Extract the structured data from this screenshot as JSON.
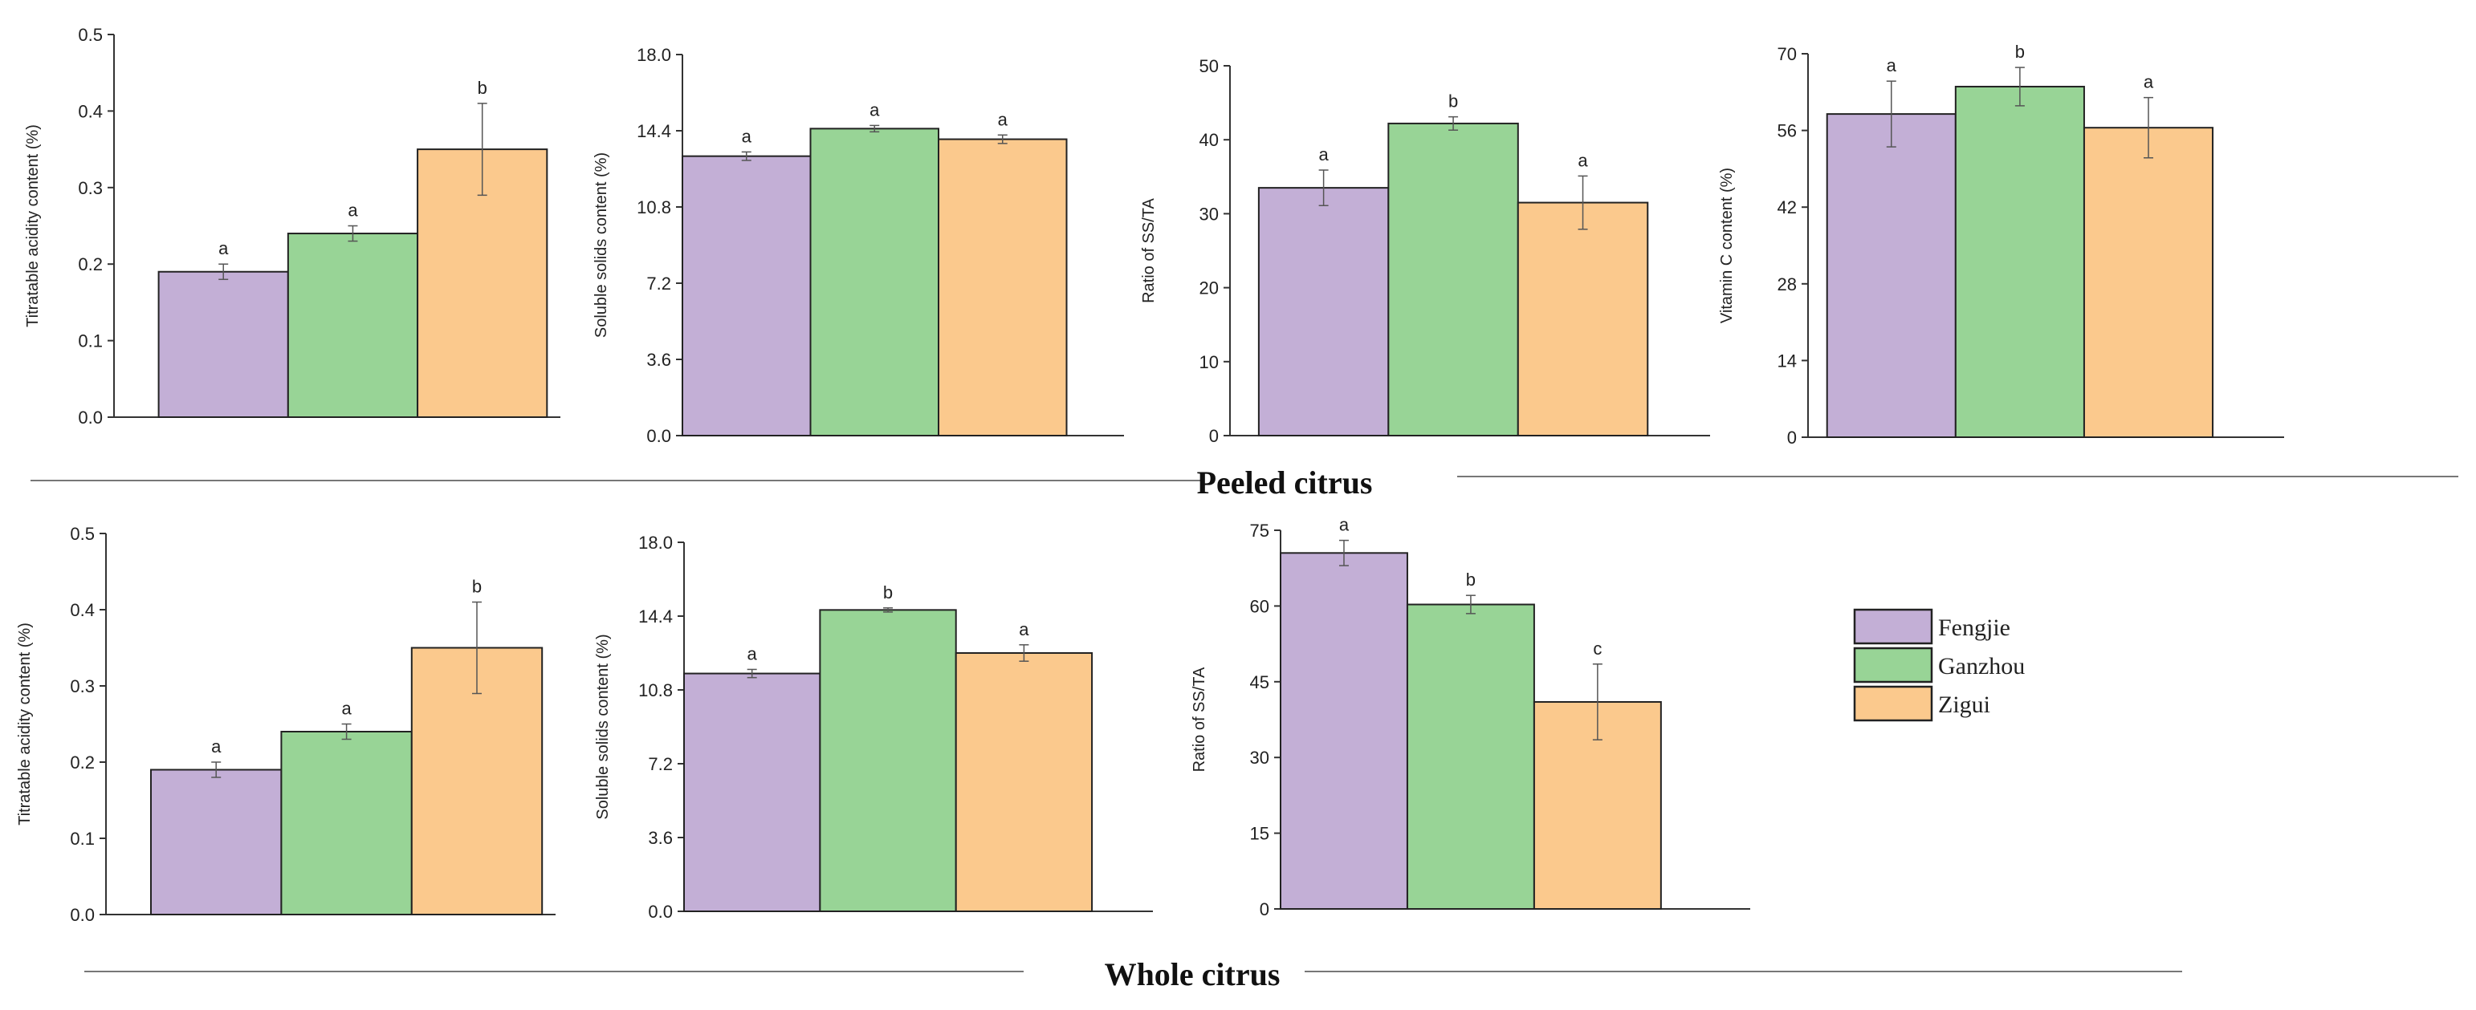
{
  "sections": {
    "peeled": {
      "label": "Peeled citrus"
    },
    "whole": {
      "label": "Whole citrus"
    }
  },
  "legend": {
    "items": [
      {
        "label": "Fengjie",
        "color": "#C3AFD6"
      },
      {
        "label": "Ganzhou",
        "color": "#98D496"
      },
      {
        "label": "Zigui",
        "color": "#FBC98D"
      }
    ]
  },
  "chart_data": [
    {
      "id": "peeled-ta",
      "type": "bar",
      "section": "Peeled citrus",
      "title": "",
      "xlabel": "",
      "ylabel": "Titratable acidity content (%)",
      "categories": [
        "Fengjie",
        "Ganzhou",
        "Zigui"
      ],
      "values": [
        0.19,
        0.24,
        0.35
      ],
      "errors": [
        0.01,
        0.01,
        0.06
      ],
      "significance": [
        "a",
        "a",
        "b"
      ],
      "ylim": [
        0,
        0.5
      ],
      "yticks": [
        "0.0",
        "0.1",
        "0.2",
        "0.3",
        "0.4",
        "0.5"
      ]
    },
    {
      "id": "peeled-ss",
      "type": "bar",
      "section": "Peeled citrus",
      "title": "",
      "xlabel": "",
      "ylabel": "Soluble solids content (%)",
      "categories": [
        "Fengjie",
        "Ganzhou",
        "Zigui"
      ],
      "values": [
        13.2,
        14.5,
        14.0
      ],
      "errors": [
        0.2,
        0.15,
        0.2
      ],
      "significance": [
        "a",
        "a",
        "a"
      ],
      "ylim": [
        0,
        18
      ],
      "yticks": [
        "0.0",
        "3.6",
        "7.2",
        "10.8",
        "14.4",
        "18.0"
      ]
    },
    {
      "id": "peeled-ratio",
      "type": "bar",
      "section": "Peeled citrus",
      "title": "",
      "xlabel": "",
      "ylabel": "Ratio of SS/TA",
      "categories": [
        "Fengjie",
        "Ganzhou",
        "Zigui"
      ],
      "values": [
        33.5,
        42.2,
        31.5
      ],
      "errors": [
        2.4,
        0.9,
        3.6
      ],
      "significance": [
        "a",
        "b",
        "a"
      ],
      "ylim": [
        0,
        50
      ],
      "yticks": [
        "0",
        "10",
        "20",
        "30",
        "40",
        "50"
      ]
    },
    {
      "id": "peeled-vc",
      "type": "bar",
      "section": "Peeled citrus",
      "title": "",
      "xlabel": "",
      "ylabel": "Vitamin C content (%)",
      "categories": [
        "Fengjie",
        "Ganzhou",
        "Zigui"
      ],
      "values": [
        59.0,
        64.0,
        56.5
      ],
      "errors": [
        6.0,
        3.5,
        5.5
      ],
      "significance": [
        "a",
        "b",
        "a"
      ],
      "ylim": [
        0,
        70
      ],
      "yticks": [
        "0",
        "14",
        "28",
        "42",
        "56",
        "70"
      ]
    },
    {
      "id": "whole-ta",
      "type": "bar",
      "section": "Whole citrus",
      "title": "",
      "xlabel": "",
      "ylabel": "Titratable acidity content (%)",
      "categories": [
        "Fengjie",
        "Ganzhou",
        "Zigui"
      ],
      "values": [
        0.19,
        0.24,
        0.35
      ],
      "errors": [
        0.01,
        0.01,
        0.06
      ],
      "significance": [
        "a",
        "a",
        "b"
      ],
      "ylim": [
        0,
        0.5
      ],
      "yticks": [
        "0.0",
        "0.1",
        "0.2",
        "0.3",
        "0.4",
        "0.5"
      ]
    },
    {
      "id": "whole-ss",
      "type": "bar",
      "section": "Whole citrus",
      "title": "",
      "xlabel": "",
      "ylabel": "Soluble solids content (%)",
      "categories": [
        "Fengjie",
        "Ganzhou",
        "Zigui"
      ],
      "values": [
        11.6,
        14.7,
        12.6
      ],
      "errors": [
        0.2,
        0.1,
        0.4
      ],
      "significance": [
        "a",
        "b",
        "a"
      ],
      "ylim": [
        0,
        18
      ],
      "yticks": [
        "0.0",
        "3.6",
        "7.2",
        "10.8",
        "14.4",
        "18.0"
      ]
    },
    {
      "id": "whole-ratio",
      "type": "bar",
      "section": "Whole citrus",
      "title": "",
      "xlabel": "",
      "ylabel": "Ratio of SS/TA",
      "categories": [
        "Fengjie",
        "Ganzhou",
        "Zigui"
      ],
      "values": [
        70.5,
        60.3,
        41.0
      ],
      "errors": [
        2.5,
        1.8,
        7.5
      ],
      "significance": [
        "a",
        "b",
        "c"
      ],
      "ylim": [
        0,
        75
      ],
      "yticks": [
        "0",
        "15",
        "30",
        "45",
        "60",
        "75"
      ]
    }
  ]
}
